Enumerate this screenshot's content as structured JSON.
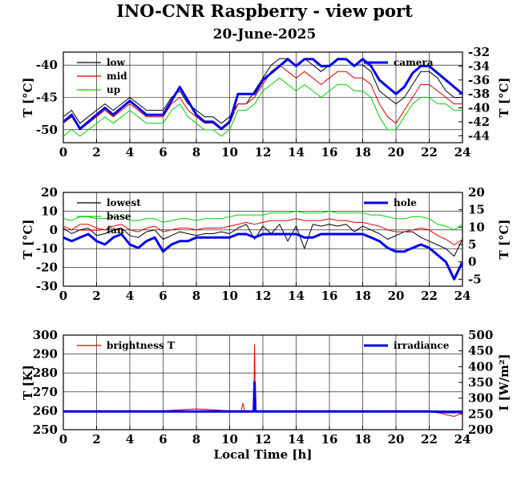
{
  "header": {
    "title": "INO-CNR Raspberry - view port",
    "date": "20-June-2025"
  },
  "colors": {
    "black": "#000000",
    "red": "#e00000",
    "green": "#00d000",
    "blue": "#0000ee"
  },
  "chart_data": [
    {
      "type": "line",
      "panel": "top",
      "x_ticks": [
        "0",
        "2",
        "4",
        "6",
        "8",
        "10",
        "12",
        "14",
        "16",
        "18",
        "20",
        "22",
        "24"
      ],
      "xlim": [
        0,
        24
      ],
      "ylabel_left": "T [°C]",
      "ylim_left": [
        -52,
        -38
      ],
      "yticks_left": [
        "-40",
        "-45",
        "-50"
      ],
      "ylabel_right": "T [°C]",
      "ylim_right": [
        -45,
        -32
      ],
      "yticks_right": [
        "-32",
        "-34",
        "-36",
        "-38",
        "-40",
        "-42",
        "-44"
      ],
      "grid": true,
      "legend_left": [
        "low",
        "mid",
        "up"
      ],
      "legend_right": [
        "camera"
      ],
      "series": [
        {
          "name": "low",
          "axis": "left",
          "color": "black",
          "x": [
            0,
            0.5,
            1,
            1.5,
            2,
            2.5,
            3,
            3.5,
            4,
            4.5,
            5,
            5.5,
            6,
            6.5,
            7,
            7.5,
            8,
            8.5,
            9,
            9.5,
            10,
            10.5,
            11,
            11.5,
            12,
            12.5,
            13,
            13.5,
            14,
            14.5,
            15,
            15.5,
            16,
            16.5,
            17,
            17.5,
            18,
            18.5,
            19,
            19.5,
            20,
            20.5,
            21,
            21.5,
            22,
            22.5,
            23,
            23.5,
            24
          ],
          "y": [
            -48,
            -47,
            -49,
            -48,
            -47,
            -46,
            -47,
            -46,
            -45,
            -46,
            -47,
            -47,
            -47,
            -45,
            -44,
            -46,
            -47,
            -48,
            -48,
            -49,
            -48,
            -46,
            -46,
            -44,
            -42,
            -40,
            -39,
            -39,
            -40,
            -39,
            -40,
            -41,
            -40,
            -39,
            -39,
            -40,
            -40,
            -41,
            -44,
            -45,
            -46,
            -45,
            -43,
            -41,
            -41,
            -42,
            -44,
            -45,
            -45
          ]
        },
        {
          "name": "mid",
          "axis": "left",
          "color": "red",
          "x": [
            0,
            0.5,
            1,
            1.5,
            2,
            2.5,
            3,
            3.5,
            4,
            4.5,
            5,
            5.5,
            6,
            6.5,
            7,
            7.5,
            8,
            8.5,
            9,
            9.5,
            10,
            10.5,
            11,
            11.5,
            12,
            12.5,
            13,
            13.5,
            14,
            14.5,
            15,
            15.5,
            16,
            16.5,
            17,
            17.5,
            18,
            18.5,
            19,
            19.5,
            20,
            20.5,
            21,
            21.5,
            22,
            22.5,
            23,
            23.5,
            24
          ],
          "y": [
            -49,
            -48,
            -50,
            -49,
            -48,
            -47,
            -48,
            -47,
            -46,
            -47,
            -48,
            -48,
            -48,
            -46,
            -45,
            -47,
            -48,
            -49,
            -49,
            -50,
            -49,
            -46,
            -46,
            -45,
            -43,
            -41,
            -40,
            -41,
            -42,
            -41,
            -42,
            -43,
            -42,
            -41,
            -41,
            -42,
            -42,
            -43,
            -46,
            -48,
            -49,
            -47,
            -45,
            -43,
            -43,
            -44,
            -45,
            -46,
            -46
          ]
        },
        {
          "name": "up",
          "axis": "left",
          "color": "green",
          "x": [
            0,
            0.5,
            1,
            1.5,
            2,
            2.5,
            3,
            3.5,
            4,
            4.5,
            5,
            5.5,
            6,
            6.5,
            7,
            7.5,
            8,
            8.5,
            9,
            9.5,
            10,
            10.5,
            11,
            11.5,
            12,
            12.5,
            13,
            13.5,
            14,
            14.5,
            15,
            15.5,
            16,
            16.5,
            17,
            17.5,
            18,
            18.5,
            19,
            19.5,
            20,
            20.5,
            21,
            21.5,
            22,
            22.5,
            23,
            23.5,
            24
          ],
          "y": [
            -51,
            -50,
            -51,
            -50,
            -49,
            -48,
            -49,
            -48,
            -47,
            -48,
            -49,
            -49,
            -49,
            -47,
            -46,
            -48,
            -49,
            -50,
            -50,
            -51,
            -50,
            -47,
            -47,
            -46,
            -44,
            -43,
            -42,
            -43,
            -44,
            -43,
            -44,
            -45,
            -44,
            -43,
            -43,
            -44,
            -44,
            -45,
            -48,
            -50,
            -50,
            -48,
            -46,
            -45,
            -45,
            -46,
            -46,
            -47,
            -47
          ]
        },
        {
          "name": "camera",
          "axis": "right",
          "color": "blue",
          "x": [
            0,
            0.5,
            1,
            1.5,
            2,
            2.5,
            3,
            3.5,
            4,
            4.5,
            5,
            5.5,
            6,
            6.5,
            7,
            7.5,
            8,
            8.5,
            9,
            9.5,
            10,
            10.5,
            11,
            11.5,
            12,
            12.5,
            13,
            13.5,
            14,
            14.5,
            15,
            15.5,
            16,
            16.5,
            17,
            17.5,
            18,
            18.5,
            19,
            19.5,
            20,
            20.5,
            21,
            21.5,
            22,
            22.5,
            23,
            23.5,
            24
          ],
          "y": [
            -42,
            -41,
            -43,
            -42,
            -41,
            -40,
            -41,
            -40,
            -39,
            -40,
            -41,
            -41,
            -41,
            -39,
            -37,
            -39,
            -41,
            -42,
            -42,
            -43,
            -42,
            -38,
            -38,
            -38,
            -36,
            -35,
            -34,
            -33,
            -34,
            -33,
            -33,
            -34,
            -34,
            -33,
            -33,
            -34,
            -33,
            -34,
            -36,
            -37,
            -38,
            -37,
            -35,
            -34,
            -34,
            -35,
            -36,
            -37,
            -38
          ]
        }
      ]
    },
    {
      "type": "line",
      "panel": "middle",
      "x_ticks": [
        "0",
        "2",
        "4",
        "6",
        "8",
        "10",
        "12",
        "14",
        "16",
        "18",
        "20",
        "22",
        "24"
      ],
      "xlim": [
        0,
        24
      ],
      "ylabel_left": "T [°C]",
      "ylim_left": [
        -30,
        20
      ],
      "yticks_left": [
        "20",
        "10",
        "0",
        "-10",
        "-20",
        "-30"
      ],
      "ylabel_right": "T [°C]",
      "ylim_right": [
        -7,
        20
      ],
      "yticks_right": [
        "20",
        "15",
        "10",
        "5",
        "0",
        "-5"
      ],
      "grid": true,
      "legend_left": [
        "lowest",
        "base",
        "fan"
      ],
      "legend_right": [
        "hole"
      ],
      "series": [
        {
          "name": "lowest",
          "axis": "left",
          "color": "black",
          "x": [
            0,
            0.5,
            1,
            1.5,
            2,
            2.5,
            3,
            3.5,
            4,
            4.5,
            5,
            5.5,
            6,
            6.5,
            7,
            7.5,
            8,
            8.5,
            9,
            9.5,
            10,
            10.5,
            11,
            11.5,
            12,
            12.5,
            13,
            13.5,
            14,
            14.5,
            15,
            15.5,
            16,
            16.5,
            17,
            17.5,
            18,
            18.5,
            19,
            19.5,
            20,
            20.5,
            21,
            21.5,
            22,
            22.5,
            23,
            23.5,
            24
          ],
          "y": [
            1,
            -2,
            0,
            1,
            -3,
            -2,
            0,
            1,
            -3,
            -4,
            -1,
            0,
            -5,
            -3,
            -1,
            -2,
            -3,
            -2,
            -2,
            -1,
            -2,
            1,
            3,
            -5,
            2,
            -2,
            3,
            -6,
            2,
            -10,
            3,
            2,
            3,
            2,
            3,
            -1,
            2,
            0,
            -2,
            -5,
            -3,
            -1,
            -1,
            -4,
            -6,
            -8,
            -10,
            -14,
            -5
          ]
        },
        {
          "name": "base",
          "axis": "left",
          "color": "green",
          "x": [
            0,
            0.5,
            1,
            1.5,
            2,
            2.5,
            3,
            3.5,
            4,
            4.5,
            5,
            5.5,
            6,
            6.5,
            7,
            7.5,
            8,
            8.5,
            9,
            9.5,
            10,
            10.5,
            11,
            11.5,
            12,
            12.5,
            13,
            13.5,
            14,
            14.5,
            15,
            15.5,
            16,
            16.5,
            17,
            17.5,
            18,
            18.5,
            19,
            19.5,
            20,
            20.5,
            21,
            21.5,
            22,
            22.5,
            23,
            23.5,
            24
          ],
          "y": [
            6,
            5,
            7,
            7,
            6,
            6,
            7,
            7,
            5,
            5,
            6,
            6,
            4,
            5,
            6,
            6,
            5,
            6,
            6,
            6,
            7,
            8,
            8,
            8,
            8,
            9,
            9,
            9,
            10,
            9,
            9,
            9,
            10,
            9,
            9,
            9,
            9,
            8,
            8,
            7,
            6,
            6,
            7,
            7,
            6,
            3,
            2,
            0,
            3
          ]
        },
        {
          "name": "fan",
          "axis": "left",
          "color": "red",
          "x": [
            0,
            0.5,
            1,
            1.5,
            2,
            2.5,
            3,
            3.5,
            4,
            4.5,
            5,
            5.5,
            6,
            6.5,
            7,
            7.5,
            8,
            8.5,
            9,
            9.5,
            10,
            10.5,
            11,
            11.5,
            12,
            12.5,
            13,
            13.5,
            14,
            14.5,
            15,
            15.5,
            16,
            16.5,
            17,
            17.5,
            18,
            18.5,
            19,
            19.5,
            20,
            20.5,
            21,
            21.5,
            22,
            22.5,
            23,
            23.5,
            24
          ],
          "y": [
            2,
            0,
            3,
            3,
            1,
            0,
            2,
            3,
            0,
            -1,
            1,
            2,
            -1,
            0,
            1,
            1,
            0,
            1,
            1,
            1,
            2,
            3,
            4,
            3,
            4,
            5,
            5,
            5,
            6,
            5,
            5,
            5,
            6,
            5,
            5,
            4,
            4,
            3,
            2,
            0,
            -1,
            -1,
            0,
            1,
            0,
            -3,
            -5,
            -8,
            -5
          ]
        },
        {
          "name": "hole",
          "axis": "right",
          "color": "blue",
          "x": [
            0,
            0.5,
            1,
            1.5,
            2,
            2.5,
            3,
            3.5,
            4,
            4.5,
            5,
            5.5,
            6,
            6.5,
            7,
            7.5,
            8,
            8.5,
            9,
            9.5,
            10,
            10.5,
            11,
            11.5,
            12,
            12.5,
            13,
            13.5,
            14,
            14.5,
            15,
            15.5,
            16,
            16.5,
            17,
            17.5,
            18,
            18.5,
            19,
            19.5,
            20,
            20.5,
            21,
            21.5,
            22,
            22.5,
            23,
            23.5,
            24
          ],
          "y": [
            7,
            6,
            7,
            8,
            6,
            5,
            7,
            8,
            5,
            4,
            6,
            7,
            3,
            5,
            6,
            6,
            7,
            7,
            7,
            7,
            7,
            8,
            8,
            7,
            8,
            8,
            8,
            8,
            8,
            7,
            7,
            8,
            8,
            8,
            8,
            8,
            8,
            7,
            6,
            4,
            3,
            3,
            4,
            5,
            4,
            2,
            0,
            -5,
            0
          ]
        }
      ]
    },
    {
      "type": "line",
      "panel": "bottom",
      "x_ticks": [
        "0",
        "2",
        "4",
        "6",
        "8",
        "10",
        "12",
        "14",
        "16",
        "18",
        "20",
        "22",
        "24"
      ],
      "xlim": [
        0,
        24
      ],
      "xlabel": "Local Time [h]",
      "ylabel_left": "T [K]",
      "ylim_left": [
        250,
        300
      ],
      "yticks_left": [
        "300",
        "290",
        "280",
        "270",
        "260",
        "250"
      ],
      "ylabel_right": "I [W/m²]",
      "ylim_right": [
        200,
        500
      ],
      "yticks_right": [
        "500",
        "450",
        "400",
        "350",
        "300",
        "250",
        "200"
      ],
      "grid": true,
      "legend_left": [
        "brightness T"
      ],
      "legend_right": [
        "irradiance"
      ],
      "series": [
        {
          "name": "brightness T",
          "axis": "left",
          "color": "red",
          "x": [
            0,
            2,
            4,
            6,
            8,
            10,
            10.7,
            10.8,
            10.9,
            11,
            11.45,
            11.5,
            11.55,
            12,
            14,
            16,
            18,
            20,
            22,
            22.5,
            23,
            23.5,
            24
          ],
          "y": [
            260,
            260,
            260,
            260,
            261,
            260,
            260,
            264,
            260,
            260,
            260,
            295,
            260,
            260,
            260,
            260,
            260,
            260,
            260,
            259,
            258,
            257,
            259
          ]
        },
        {
          "name": "irradiance",
          "axis": "right",
          "color": "blue",
          "x": [
            0,
            2,
            4,
            6,
            8,
            10,
            11,
            11.45,
            11.5,
            11.55,
            12,
            14,
            16,
            18,
            20,
            22,
            22.5,
            23,
            23.5,
            24
          ],
          "y": [
            258,
            258,
            258,
            258,
            258,
            258,
            258,
            258,
            350,
            258,
            258,
            258,
            258,
            258,
            258,
            258,
            257,
            256,
            256,
            257
          ]
        }
      ]
    }
  ]
}
